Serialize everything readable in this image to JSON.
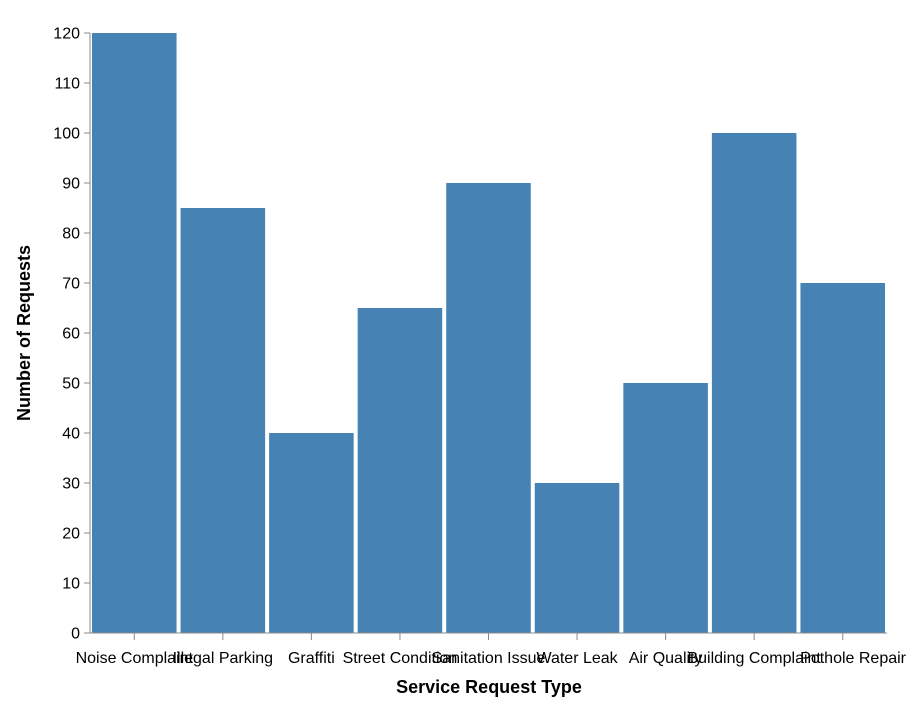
{
  "chart_data": {
    "type": "bar",
    "categories": [
      "Noise Complaint",
      "Illegal Parking",
      "Graffiti",
      "Street Condition",
      "Sanitation Issue",
      "Water Leak",
      "Air Quality",
      "Building Complaint",
      "Pothole Repair"
    ],
    "values": [
      120,
      85,
      40,
      65,
      90,
      30,
      50,
      100,
      70
    ],
    "xlabel": "Service Request Type",
    "ylabel": "Number of Requests",
    "ylim": [
      0,
      120
    ],
    "yticks": [
      0,
      10,
      20,
      30,
      40,
      50,
      60,
      70,
      80,
      90,
      100,
      110,
      120
    ],
    "grid": false,
    "legend": "none"
  },
  "colors": {
    "bar": "#4682b4",
    "axis": "#888888"
  }
}
